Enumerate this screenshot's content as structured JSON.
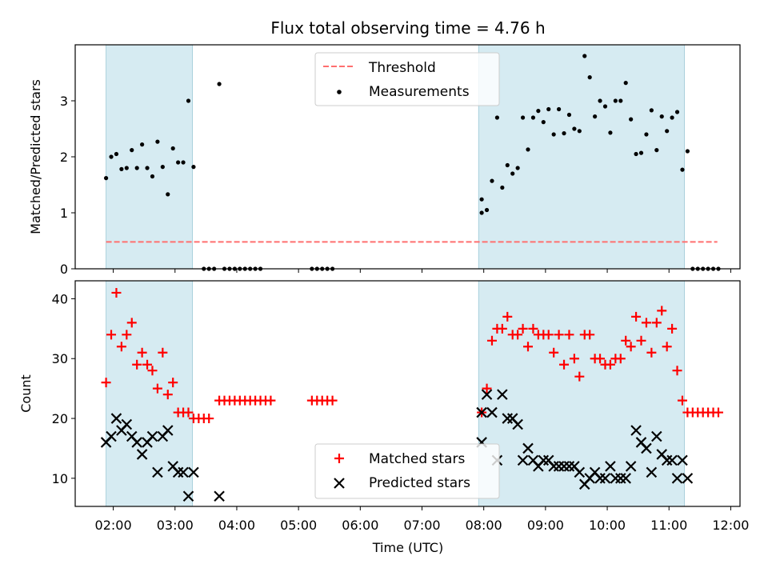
{
  "figure": {
    "title": "Flux total observing time = 4.76 h",
    "xlabel": "Time (UTC)"
  },
  "chart_data": [
    {
      "type": "scatter",
      "panel": "top",
      "ylabel": "Matched/Predicted stars",
      "xlim": [
        "01:23",
        "12:09"
      ],
      "ylim": [
        0,
        4.0
      ],
      "yticks": [
        0,
        1,
        2,
        3
      ],
      "shaded_intervals": [
        [
          "01:53",
          "03:17"
        ],
        [
          "07:55",
          "11:15"
        ]
      ],
      "threshold": {
        "name": "Threshold",
        "value": 0.48,
        "x_range": [
          "01:53",
          "11:47"
        ],
        "color": "#ff6f6f",
        "style": "dashed"
      },
      "legend": {
        "position": "top-center",
        "entries": [
          "Threshold",
          "Measurements"
        ]
      },
      "series": [
        {
          "name": "Measurements",
          "color": "#000000",
          "marker": "dot",
          "points": [
            [
              "01:53",
              1.62
            ],
            [
              "01:58",
              2.0
            ],
            [
              "02:03",
              2.05
            ],
            [
              "02:08",
              1.78
            ],
            [
              "02:13",
              1.8
            ],
            [
              "02:18",
              2.12
            ],
            [
              "02:23",
              1.8
            ],
            [
              "02:28",
              2.22
            ],
            [
              "02:33",
              1.8
            ],
            [
              "02:38",
              1.65
            ],
            [
              "02:43",
              2.27
            ],
            [
              "02:48",
              1.82
            ],
            [
              "02:53",
              1.33
            ],
            [
              "02:58",
              2.15
            ],
            [
              "03:03",
              1.9
            ],
            [
              "03:08",
              1.9
            ],
            [
              "03:13",
              3.0
            ],
            [
              "03:18",
              1.82
            ],
            [
              "03:28",
              0
            ],
            [
              "03:33",
              0
            ],
            [
              "03:38",
              0
            ],
            [
              "03:43",
              3.3
            ],
            [
              "03:48",
              0
            ],
            [
              "03:53",
              0
            ],
            [
              "03:58",
              0
            ],
            [
              "04:03",
              0
            ],
            [
              "04:08",
              0
            ],
            [
              "04:13",
              0
            ],
            [
              "04:18",
              0
            ],
            [
              "04:23",
              0
            ],
            [
              "05:13",
              0
            ],
            [
              "05:18",
              0
            ],
            [
              "05:23",
              0
            ],
            [
              "05:28",
              0
            ],
            [
              "05:33",
              0
            ],
            [
              "07:58",
              1.24
            ],
            [
              "07:58",
              1.0
            ],
            [
              "08:03",
              1.05
            ],
            [
              "08:08",
              1.57
            ],
            [
              "08:13",
              2.7
            ],
            [
              "08:18",
              1.45
            ],
            [
              "08:23",
              1.85
            ],
            [
              "08:28",
              1.7
            ],
            [
              "08:33",
              1.8
            ],
            [
              "08:38",
              2.7
            ],
            [
              "08:43",
              2.13
            ],
            [
              "08:48",
              2.7
            ],
            [
              "08:53",
              2.82
            ],
            [
              "08:58",
              2.62
            ],
            [
              "09:03",
              2.85
            ],
            [
              "09:08",
              2.4
            ],
            [
              "09:13",
              2.85
            ],
            [
              "09:18",
              2.42
            ],
            [
              "09:23",
              2.75
            ],
            [
              "09:28",
              2.5
            ],
            [
              "09:33",
              2.46
            ],
            [
              "09:38",
              3.8
            ],
            [
              "09:43",
              3.42
            ],
            [
              "09:48",
              2.72
            ],
            [
              "09:53",
              3.0
            ],
            [
              "09:58",
              2.9
            ],
            [
              "10:03",
              2.43
            ],
            [
              "10:08",
              3.0
            ],
            [
              "10:13",
              3.0
            ],
            [
              "10:18",
              3.32
            ],
            [
              "10:23",
              2.67
            ],
            [
              "10:28",
              2.05
            ],
            [
              "10:33",
              2.07
            ],
            [
              "10:38",
              2.4
            ],
            [
              "10:43",
              2.83
            ],
            [
              "10:48",
              2.12
            ],
            [
              "10:53",
              2.72
            ],
            [
              "10:58",
              2.46
            ],
            [
              "11:03",
              2.7
            ],
            [
              "11:08",
              2.8
            ],
            [
              "11:13",
              1.77
            ],
            [
              "11:18",
              2.1
            ],
            [
              "11:23",
              0
            ],
            [
              "11:28",
              0
            ],
            [
              "11:33",
              0
            ],
            [
              "11:38",
              0
            ],
            [
              "11:43",
              0
            ],
            [
              "11:48",
              0
            ]
          ]
        }
      ]
    },
    {
      "type": "scatter",
      "panel": "bottom",
      "ylabel": "Count",
      "xlim": [
        "01:23",
        "12:09"
      ],
      "ylim": [
        5.3,
        43.0
      ],
      "yticks": [
        10,
        20,
        30,
        40
      ],
      "xticks": [
        "02:00",
        "03:00",
        "04:00",
        "05:00",
        "06:00",
        "07:00",
        "08:00",
        "09:00",
        "10:00",
        "11:00",
        "12:00"
      ],
      "shaded_intervals": [
        [
          "01:53",
          "03:17"
        ],
        [
          "07:55",
          "11:15"
        ]
      ],
      "legend": {
        "position": "lower-center",
        "entries": [
          "Matched stars",
          "Predicted stars"
        ]
      },
      "series": [
        {
          "name": "Matched stars",
          "color": "#ff0000",
          "marker": "plus",
          "points": [
            [
              "01:53",
              26
            ],
            [
              "01:58",
              34
            ],
            [
              "02:03",
              41
            ],
            [
              "02:08",
              32
            ],
            [
              "02:13",
              34
            ],
            [
              "02:18",
              36
            ],
            [
              "02:23",
              29
            ],
            [
              "02:28",
              31
            ],
            [
              "02:33",
              29
            ],
            [
              "02:38",
              28
            ],
            [
              "02:43",
              25
            ],
            [
              "02:48",
              31
            ],
            [
              "02:53",
              24
            ],
            [
              "02:58",
              26
            ],
            [
              "03:03",
              21
            ],
            [
              "03:08",
              21
            ],
            [
              "03:13",
              21
            ],
            [
              "03:18",
              20
            ],
            [
              "03:23",
              20
            ],
            [
              "03:28",
              20
            ],
            [
              "03:33",
              20
            ],
            [
              "03:43",
              23
            ],
            [
              "03:48",
              23
            ],
            [
              "03:53",
              23
            ],
            [
              "03:58",
              23
            ],
            [
              "04:03",
              23
            ],
            [
              "04:08",
              23
            ],
            [
              "04:13",
              23
            ],
            [
              "04:18",
              23
            ],
            [
              "04:23",
              23
            ],
            [
              "04:28",
              23
            ],
            [
              "04:33",
              23
            ],
            [
              "05:13",
              23
            ],
            [
              "05:18",
              23
            ],
            [
              "05:23",
              23
            ],
            [
              "05:28",
              23
            ],
            [
              "05:33",
              23
            ],
            [
              "07:58",
              21
            ],
            [
              "08:03",
              25
            ],
            [
              "08:08",
              33
            ],
            [
              "08:13",
              35
            ],
            [
              "08:18",
              35
            ],
            [
              "08:23",
              37
            ],
            [
              "08:28",
              34
            ],
            [
              "08:33",
              34
            ],
            [
              "08:38",
              35
            ],
            [
              "08:43",
              32
            ],
            [
              "08:48",
              35
            ],
            [
              "08:53",
              34
            ],
            [
              "08:58",
              34
            ],
            [
              "09:03",
              34
            ],
            [
              "09:08",
              31
            ],
            [
              "09:13",
              34
            ],
            [
              "09:18",
              29
            ],
            [
              "09:23",
              34
            ],
            [
              "09:28",
              30
            ],
            [
              "09:33",
              27
            ],
            [
              "09:38",
              34
            ],
            [
              "09:43",
              34
            ],
            [
              "09:48",
              30
            ],
            [
              "09:53",
              30
            ],
            [
              "09:58",
              29
            ],
            [
              "10:03",
              29
            ],
            [
              "10:08",
              30
            ],
            [
              "10:13",
              30
            ],
            [
              "10:18",
              33
            ],
            [
              "10:23",
              32
            ],
            [
              "10:28",
              37
            ],
            [
              "10:33",
              33
            ],
            [
              "10:38",
              36
            ],
            [
              "10:43",
              31
            ],
            [
              "10:48",
              36
            ],
            [
              "10:53",
              38
            ],
            [
              "10:58",
              32
            ],
            [
              "11:03",
              35
            ],
            [
              "11:08",
              28
            ],
            [
              "11:13",
              23
            ],
            [
              "11:18",
              21
            ],
            [
              "11:23",
              21
            ],
            [
              "11:28",
              21
            ],
            [
              "11:33",
              21
            ],
            [
              "11:38",
              21
            ],
            [
              "11:43",
              21
            ],
            [
              "11:48",
              21
            ]
          ]
        },
        {
          "name": "Predicted stars",
          "color": "#000000",
          "marker": "x",
          "points": [
            [
              "01:53",
              16
            ],
            [
              "01:58",
              17
            ],
            [
              "02:03",
              20
            ],
            [
              "02:08",
              18
            ],
            [
              "02:13",
              19
            ],
            [
              "02:18",
              17
            ],
            [
              "02:23",
              16
            ],
            [
              "02:28",
              14
            ],
            [
              "02:33",
              16
            ],
            [
              "02:38",
              17
            ],
            [
              "02:43",
              11
            ],
            [
              "02:48",
              17
            ],
            [
              "02:53",
              18
            ],
            [
              "02:58",
              12
            ],
            [
              "03:03",
              11
            ],
            [
              "03:08",
              11
            ],
            [
              "03:13",
              7
            ],
            [
              "03:18",
              11
            ],
            [
              "03:43",
              7
            ],
            [
              "07:58",
              21
            ],
            [
              "07:58",
              16
            ],
            [
              "08:03",
              24
            ],
            [
              "08:08",
              21
            ],
            [
              "08:13",
              13
            ],
            [
              "08:18",
              24
            ],
            [
              "08:23",
              20
            ],
            [
              "08:28",
              20
            ],
            [
              "08:33",
              19
            ],
            [
              "08:38",
              13
            ],
            [
              "08:43",
              15
            ],
            [
              "08:48",
              13
            ],
            [
              "08:53",
              12
            ],
            [
              "08:58",
              13
            ],
            [
              "09:03",
              13
            ],
            [
              "09:08",
              12
            ],
            [
              "09:13",
              12
            ],
            [
              "09:18",
              12
            ],
            [
              "09:23",
              12
            ],
            [
              "09:28",
              12
            ],
            [
              "09:33",
              11
            ],
            [
              "09:38",
              9
            ],
            [
              "09:43",
              10
            ],
            [
              "09:48",
              11
            ],
            [
              "09:53",
              10
            ],
            [
              "09:58",
              10
            ],
            [
              "10:03",
              12
            ],
            [
              "10:08",
              10
            ],
            [
              "10:13",
              10
            ],
            [
              "10:18",
              10
            ],
            [
              "10:23",
              12
            ],
            [
              "10:28",
              18
            ],
            [
              "10:33",
              16
            ],
            [
              "10:38",
              15
            ],
            [
              "10:43",
              11
            ],
            [
              "10:48",
              17
            ],
            [
              "10:53",
              14
            ],
            [
              "10:58",
              13
            ],
            [
              "11:03",
              13
            ],
            [
              "11:08",
              10
            ],
            [
              "11:13",
              13
            ],
            [
              "11:18",
              10
            ]
          ]
        }
      ]
    }
  ]
}
